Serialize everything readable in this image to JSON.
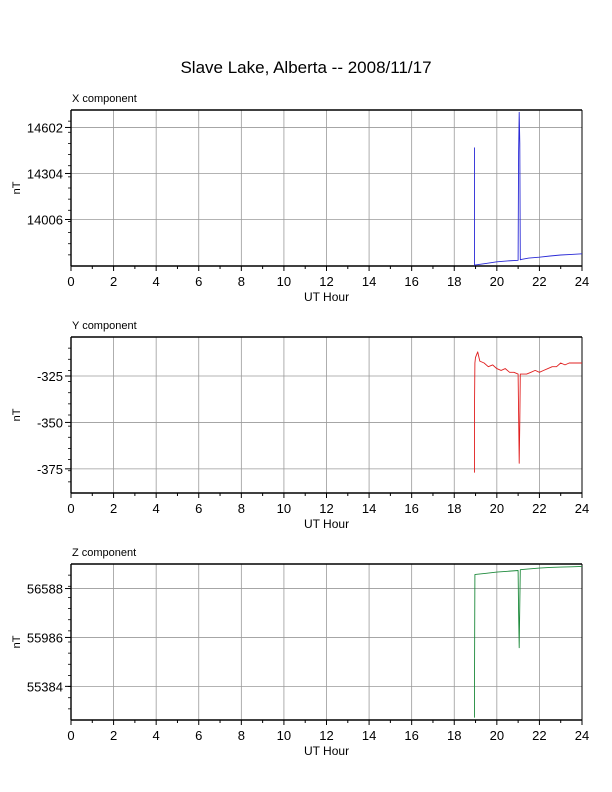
{
  "title": "Slave Lake, Alberta -- 2008/11/17",
  "chart_data": [
    {
      "type": "line",
      "panel_title": "X component",
      "xlabel": "UT Hour",
      "ylabel": "nT",
      "xlim": [
        0,
        24
      ],
      "ylim": [
        13705,
        14715
      ],
      "xticks": [
        0,
        2,
        4,
        6,
        8,
        10,
        12,
        14,
        16,
        18,
        20,
        22,
        24
      ],
      "yticks": [
        14006,
        14304,
        14602
      ],
      "grid": true,
      "color": "#2a2ad6",
      "series": [
        {
          "x": [
            18.95,
            18.95,
            18.95,
            19.0,
            19.5,
            20.0,
            20.5,
            21.0,
            21.02,
            21.05,
            21.08,
            21.1,
            21.15,
            21.5,
            22.0,
            22.5,
            23.0,
            23.5,
            24.0
          ],
          "y": [
            14220,
            14470,
            13710,
            13712,
            13722,
            13732,
            13738,
            13742,
            14440,
            14700,
            14500,
            13745,
            13748,
            13756,
            13762,
            13770,
            13776,
            13780,
            13784
          ]
        }
      ]
    },
    {
      "type": "line",
      "panel_title": "Y component",
      "xlabel": "UT Hour",
      "ylabel": "nT",
      "xlim": [
        0,
        24
      ],
      "ylim": [
        -388,
        -304
      ],
      "xticks": [
        0,
        2,
        4,
        6,
        8,
        10,
        12,
        14,
        16,
        18,
        20,
        22,
        24
      ],
      "yticks": [
        -325,
        -350,
        -375
      ],
      "grid": true,
      "color": "#e02020",
      "series": [
        {
          "x": [
            18.95,
            18.95,
            18.97,
            19.0,
            19.1,
            19.2,
            19.4,
            19.6,
            19.8,
            20.0,
            20.2,
            20.4,
            20.6,
            20.8,
            21.0,
            21.02,
            21.05,
            21.08,
            21.1,
            21.2,
            21.4,
            21.6,
            21.8,
            22.0,
            22.2,
            22.4,
            22.6,
            22.8,
            23.0,
            23.2,
            23.4,
            23.6,
            23.8,
            24.0
          ],
          "y": [
            -377,
            -341,
            -318,
            -315,
            -312,
            -317,
            -318,
            -320,
            -319,
            -321,
            -322,
            -321,
            -323,
            -323,
            -324,
            -345,
            -372,
            -350,
            -324,
            -324,
            -324,
            -323,
            -322,
            -323,
            -322,
            -321,
            -320,
            -320,
            -318,
            -319,
            -318,
            -318,
            -318,
            -318
          ]
        }
      ]
    },
    {
      "type": "line",
      "panel_title": "Z component",
      "xlabel": "UT Hour",
      "ylabel": "nT",
      "xlim": [
        0,
        24
      ],
      "ylim": [
        54970,
        56890
      ],
      "xticks": [
        0,
        2,
        4,
        6,
        8,
        10,
        12,
        14,
        16,
        18,
        20,
        22,
        24
      ],
      "yticks": [
        55384,
        55986,
        56588
      ],
      "grid": true,
      "color": "#1e8a3c",
      "series": [
        {
          "x": [
            18.95,
            18.95,
            18.97,
            19.0,
            19.5,
            20.0,
            20.5,
            21.0,
            21.02,
            21.05,
            21.08,
            21.1,
            21.5,
            22.0,
            22.5,
            23.0,
            23.5,
            24.0
          ],
          "y": [
            55000,
            55480,
            56760,
            56762,
            56775,
            56790,
            56800,
            56810,
            56300,
            55860,
            56400,
            56820,
            56830,
            56840,
            56848,
            56852,
            56856,
            56860
          ]
        }
      ]
    }
  ]
}
